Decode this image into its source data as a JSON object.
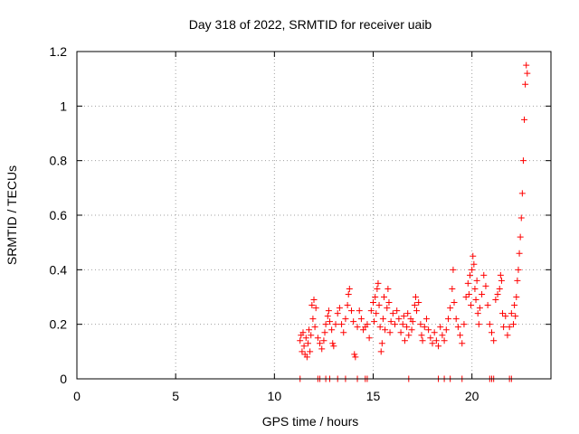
{
  "chart_data": {
    "type": "scatter",
    "title": "Day 318 of 2022, SRMTID for receiver uaib",
    "xlabel": "GPS time / hours",
    "ylabel": "SRMTID / TECUs",
    "xlim": [
      0,
      24
    ],
    "ylim": [
      0,
      1.2
    ],
    "grid": true,
    "marker": "+",
    "color": "#ff0000",
    "x_ticks": [
      0,
      5,
      10,
      15,
      20
    ],
    "x_tick_labels": [
      "0",
      "5",
      "10",
      "15",
      "20"
    ],
    "y_ticks": [
      0,
      0.2,
      0.4,
      0.6,
      0.8,
      1.0,
      1.2
    ],
    "y_tick_labels": [
      "0",
      "0.2",
      "0.4",
      "0.6",
      "0.8",
      "1",
      "1.2"
    ],
    "series": [
      {
        "name": "SRMTID",
        "points": [
          [
            11.3,
            0.14
          ],
          [
            11.35,
            0.16
          ],
          [
            11.4,
            0.1
          ],
          [
            11.45,
            0.17
          ],
          [
            11.5,
            0.12
          ],
          [
            11.55,
            0.09
          ],
          [
            11.6,
            0.15
          ],
          [
            11.65,
            0.08
          ],
          [
            11.7,
            0.13
          ],
          [
            11.75,
            0.18
          ],
          [
            11.8,
            0.1
          ],
          [
            11.85,
            0.16
          ],
          [
            11.9,
            0.27
          ],
          [
            11.95,
            0.22
          ],
          [
            12.0,
            0.29
          ],
          [
            12.05,
            0.19
          ],
          [
            12.1,
            0.26
          ],
          [
            12.2,
            0.15
          ],
          [
            12.3,
            0.13
          ],
          [
            12.4,
            0.11
          ],
          [
            12.5,
            0.14
          ],
          [
            12.55,
            0.17
          ],
          [
            12.6,
            0.2
          ],
          [
            12.7,
            0.23
          ],
          [
            12.75,
            0.25
          ],
          [
            12.8,
            0.21
          ],
          [
            12.9,
            0.18
          ],
          [
            12.95,
            0.13
          ],
          [
            13.0,
            0.12
          ],
          [
            13.1,
            0.2
          ],
          [
            13.2,
            0.24
          ],
          [
            13.3,
            0.26
          ],
          [
            13.4,
            0.2
          ],
          [
            13.5,
            0.17
          ],
          [
            13.6,
            0.22
          ],
          [
            13.7,
            0.27
          ],
          [
            13.75,
            0.31
          ],
          [
            13.8,
            0.33
          ],
          [
            13.9,
            0.25
          ],
          [
            14.0,
            0.21
          ],
          [
            14.05,
            0.09
          ],
          [
            14.1,
            0.08
          ],
          [
            14.2,
            0.19
          ],
          [
            14.3,
            0.25
          ],
          [
            14.4,
            0.22
          ],
          [
            14.5,
            0.18
          ],
          [
            14.6,
            0.19
          ],
          [
            14.7,
            0.2
          ],
          [
            14.8,
            0.15
          ],
          [
            14.9,
            0.25
          ],
          [
            15.0,
            0.28
          ],
          [
            15.05,
            0.21
          ],
          [
            15.1,
            0.3
          ],
          [
            15.15,
            0.24
          ],
          [
            15.2,
            0.33
          ],
          [
            15.25,
            0.35
          ],
          [
            15.3,
            0.27
          ],
          [
            15.35,
            0.19
          ],
          [
            15.4,
            0.1
          ],
          [
            15.45,
            0.13
          ],
          [
            15.5,
            0.22
          ],
          [
            15.55,
            0.3
          ],
          [
            15.6,
            0.18
          ],
          [
            15.7,
            0.26
          ],
          [
            15.75,
            0.33
          ],
          [
            15.8,
            0.28
          ],
          [
            15.85,
            0.17
          ],
          [
            15.9,
            0.21
          ],
          [
            16.0,
            0.24
          ],
          [
            16.1,
            0.2
          ],
          [
            16.2,
            0.25
          ],
          [
            16.3,
            0.22
          ],
          [
            16.4,
            0.17
          ],
          [
            16.5,
            0.2
          ],
          [
            16.55,
            0.23
          ],
          [
            16.6,
            0.14
          ],
          [
            16.7,
            0.19
          ],
          [
            16.75,
            0.24
          ],
          [
            16.8,
            0.16
          ],
          [
            16.9,
            0.22
          ],
          [
            16.95,
            0.18
          ],
          [
            17.0,
            0.21
          ],
          [
            17.1,
            0.27
          ],
          [
            17.15,
            0.3
          ],
          [
            17.2,
            0.25
          ],
          [
            17.3,
            0.28
          ],
          [
            17.4,
            0.2
          ],
          [
            17.45,
            0.16
          ],
          [
            17.5,
            0.14
          ],
          [
            17.6,
            0.19
          ],
          [
            17.7,
            0.22
          ],
          [
            17.8,
            0.18
          ],
          [
            17.9,
            0.15
          ],
          [
            18.0,
            0.13
          ],
          [
            18.1,
            0.17
          ],
          [
            18.2,
            0.14
          ],
          [
            18.3,
            0.12
          ],
          [
            18.4,
            0.19
          ],
          [
            18.5,
            0.16
          ],
          [
            18.6,
            0.14
          ],
          [
            18.7,
            0.18
          ],
          [
            18.8,
            0.22
          ],
          [
            18.9,
            0.26
          ],
          [
            19.0,
            0.33
          ],
          [
            19.05,
            0.4
          ],
          [
            19.1,
            0.28
          ],
          [
            19.2,
            0.22
          ],
          [
            19.3,
            0.19
          ],
          [
            19.4,
            0.16
          ],
          [
            19.5,
            0.13
          ],
          [
            19.6,
            0.2
          ],
          [
            19.7,
            0.3
          ],
          [
            19.8,
            0.35
          ],
          [
            19.85,
            0.31
          ],
          [
            19.9,
            0.38
          ],
          [
            19.95,
            0.27
          ],
          [
            20.0,
            0.4
          ],
          [
            20.05,
            0.45
          ],
          [
            20.1,
            0.42
          ],
          [
            20.15,
            0.33
          ],
          [
            20.2,
            0.29
          ],
          [
            20.25,
            0.36
          ],
          [
            20.3,
            0.24
          ],
          [
            20.35,
            0.2
          ],
          [
            20.4,
            0.26
          ],
          [
            20.5,
            0.31
          ],
          [
            20.6,
            0.38
          ],
          [
            20.7,
            0.34
          ],
          [
            20.8,
            0.27
          ],
          [
            20.9,
            0.2
          ],
          [
            21.0,
            0.17
          ],
          [
            21.1,
            0.14
          ],
          [
            21.2,
            0.29
          ],
          [
            21.3,
            0.31
          ],
          [
            21.4,
            0.33
          ],
          [
            21.45,
            0.38
          ],
          [
            21.5,
            0.36
          ],
          [
            21.55,
            0.24
          ],
          [
            21.6,
            0.19
          ],
          [
            21.7,
            0.23
          ],
          [
            21.8,
            0.16
          ],
          [
            21.9,
            0.19
          ],
          [
            22.0,
            0.24
          ],
          [
            22.1,
            0.2
          ],
          [
            22.15,
            0.27
          ],
          [
            22.2,
            0.23
          ],
          [
            22.25,
            0.3
          ],
          [
            22.3,
            0.36
          ],
          [
            22.35,
            0.4
          ],
          [
            22.4,
            0.46
          ],
          [
            22.45,
            0.52
          ],
          [
            22.5,
            0.59
          ],
          [
            22.55,
            0.68
          ],
          [
            22.6,
            0.8
          ],
          [
            22.65,
            0.95
          ],
          [
            22.7,
            1.08
          ],
          [
            22.75,
            1.15
          ],
          [
            22.8,
            1.12
          ]
        ],
        "zero_points": [
          11.3,
          12.2,
          12.3,
          12.6,
          12.8,
          13.2,
          13.6,
          14.2,
          14.6,
          14.7,
          16.8,
          18.3,
          18.6,
          18.9,
          19.5,
          20.9,
          21.0,
          21.1,
          21.9,
          22.0
        ]
      }
    ]
  }
}
